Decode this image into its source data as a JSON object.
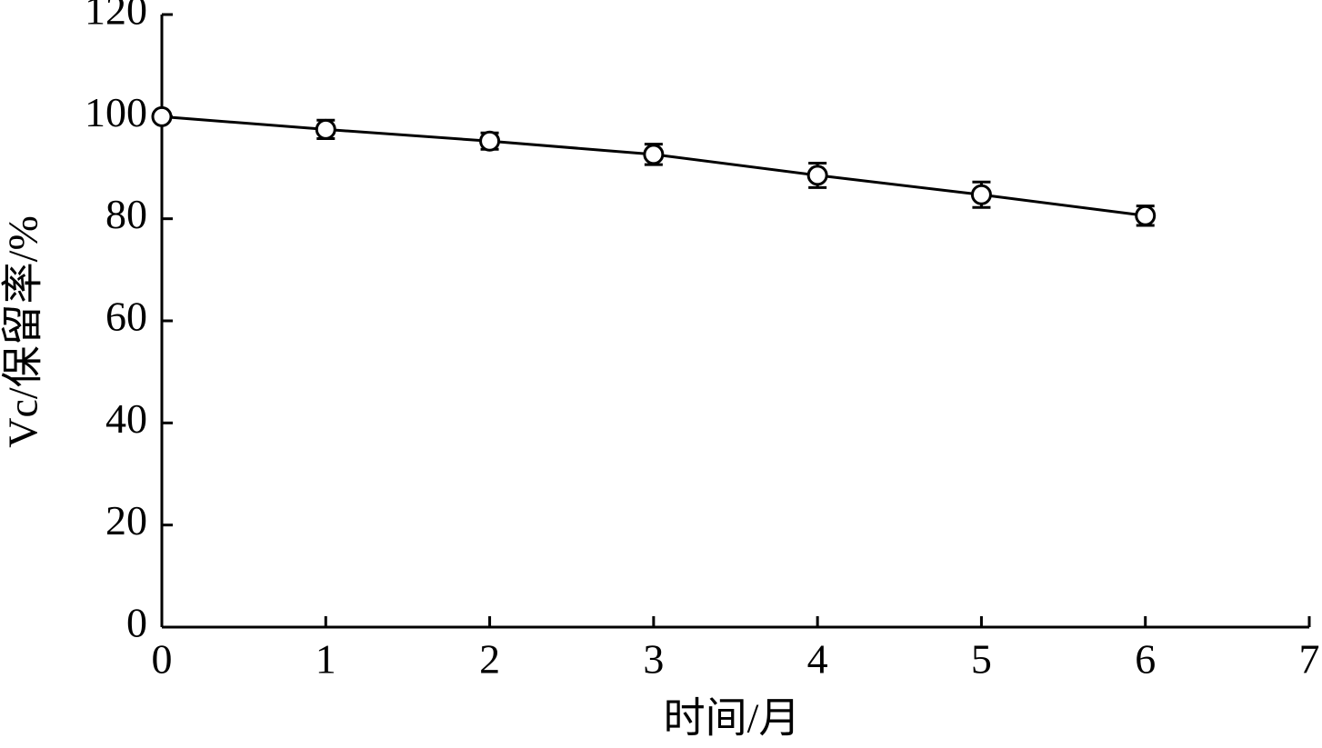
{
  "chart_data": {
    "type": "line",
    "x_label": "时间/月",
    "y_label": "Vc/保留率/%",
    "x": [
      0,
      1,
      2,
      3,
      4,
      5,
      6
    ],
    "values": [
      100,
      97.5,
      95.2,
      92.6,
      88.5,
      84.7,
      80.6
    ],
    "errors": [
      0,
      1.8,
      1.6,
      2,
      2.4,
      2.5,
      1.9
    ],
    "color": "#000000",
    "xlim": [
      0,
      7
    ],
    "xticks": [
      0,
      1,
      2,
      3,
      4,
      5,
      6,
      7
    ],
    "ylim": [
      0,
      120
    ],
    "yticks": [
      0,
      20,
      40,
      60,
      80,
      100,
      120
    ],
    "grid": false
  }
}
